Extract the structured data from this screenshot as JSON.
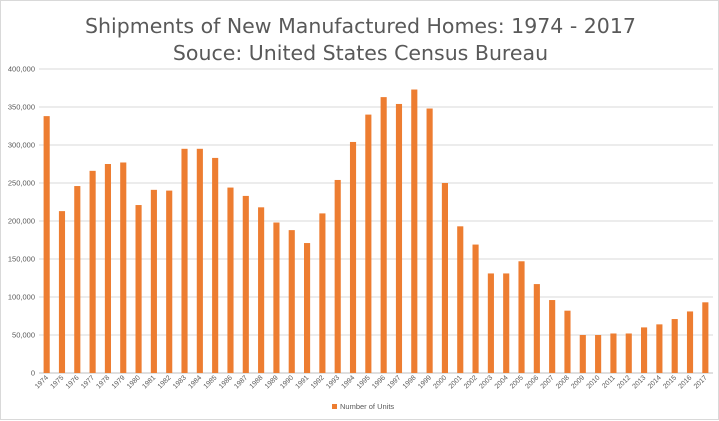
{
  "chart_data": {
    "type": "bar",
    "title": "Shipments of New Manufactured Homes: 1974 - 2017",
    "subtitle": "Souce: United States Census Bureau",
    "xlabel": "",
    "ylabel": "",
    "ylim": [
      0,
      400000
    ],
    "yticks": [
      0,
      50000,
      100000,
      150000,
      200000,
      250000,
      300000,
      350000,
      400000
    ],
    "ytick_labels": [
      "0",
      "50,000",
      "100,000",
      "150,000",
      "200,000",
      "250,000",
      "300,000",
      "350,000",
      "400,000"
    ],
    "grid": true,
    "legend_position": "bottom",
    "color": "#ed7d31",
    "series": [
      {
        "name": "Number of Units",
        "values": [
          338000,
          213000,
          246000,
          266000,
          275000,
          277000,
          221000,
          241000,
          240000,
          295000,
          295000,
          283000,
          244000,
          233000,
          218000,
          198000,
          188000,
          171000,
          210000,
          254000,
          304000,
          340000,
          363000,
          354000,
          373000,
          348000,
          250000,
          193000,
          169000,
          131000,
          131000,
          147000,
          117000,
          96000,
          82000,
          50000,
          50000,
          52000,
          52000,
          60000,
          64000,
          71000,
          81000,
          93000
        ]
      }
    ],
    "categories": [
      "1974",
      "1975",
      "1976",
      "1977",
      "1978",
      "1979",
      "1980",
      "1981",
      "1982",
      "1983",
      "1984",
      "1985",
      "1986",
      "1987",
      "1988",
      "1989",
      "1990",
      "1991",
      "1992",
      "1993",
      "1994",
      "1995",
      "1996",
      "1997",
      "1998",
      "1999",
      "2000",
      "2001",
      "2002",
      "2003",
      "2004",
      "2005",
      "2006",
      "2007",
      "2008",
      "2009",
      "2010",
      "2011",
      "2012",
      "2013",
      "2014",
      "2015",
      "2016",
      "2017"
    ]
  }
}
